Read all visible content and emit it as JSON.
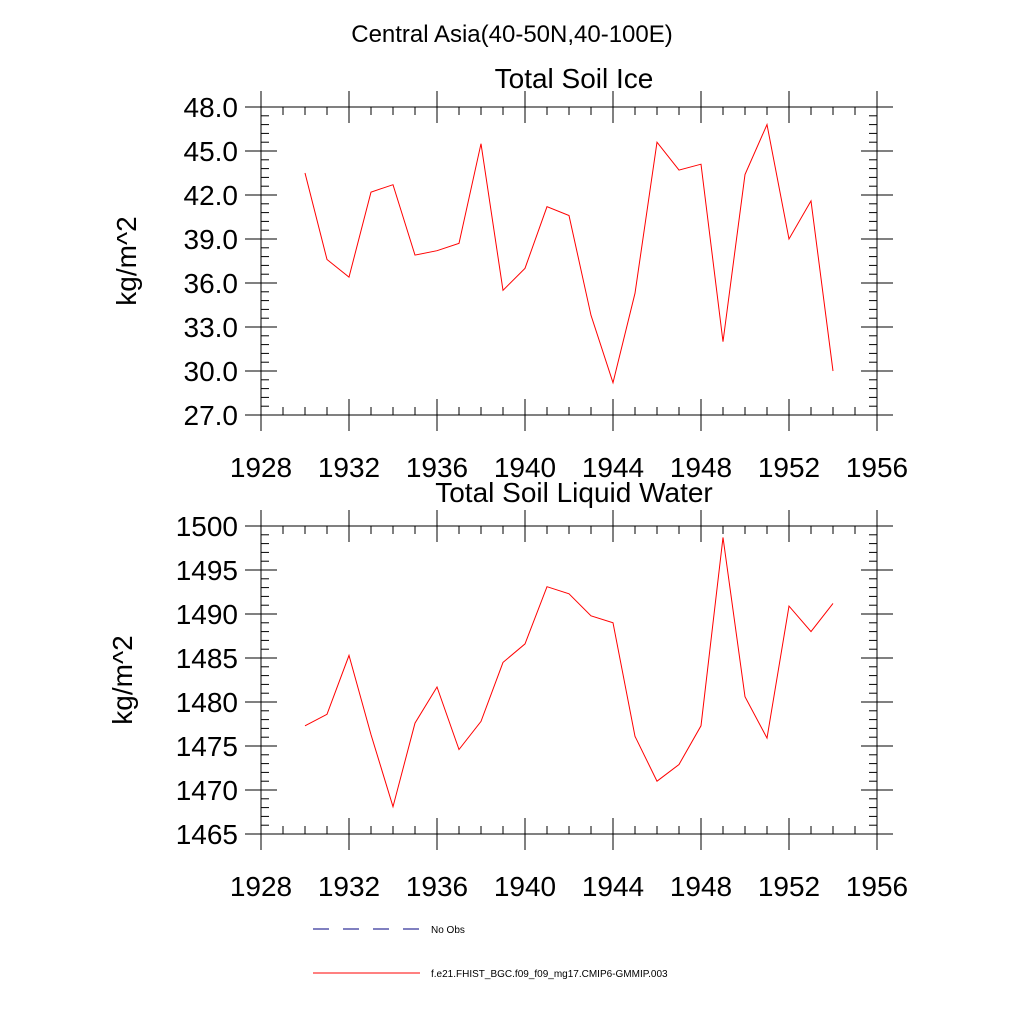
{
  "figure_title": "Central Asia(40-50N,40-100E)",
  "legend": [
    {
      "label": "No Obs",
      "color": "#000080",
      "style": "dashed"
    },
    {
      "label": "f.e21.FHIST_BGC.f09_f09_mg17.CMIP6-GMMIP.003",
      "color": "#ff0000",
      "style": "solid"
    }
  ],
  "chart_data": [
    {
      "type": "line",
      "title": "Total Soil Ice",
      "xlabel": "",
      "ylabel": "kg/m^2",
      "xlim": [
        1928,
        1956
      ],
      "ylim": [
        27,
        48
      ],
      "xticks": [
        1928,
        1932,
        1936,
        1940,
        1944,
        1948,
        1952,
        1956
      ],
      "yticks": [
        27,
        30,
        33,
        36,
        39,
        42,
        45,
        48
      ],
      "ytick_labels": [
        "27.0",
        "30.0",
        "33.0",
        "36.0",
        "39.0",
        "42.0",
        "45.0",
        "48.0"
      ],
      "series": [
        {
          "name": "f.e21.FHIST_BGC.f09_f09_mg17.CMIP6-GMMIP.003",
          "color": "#ff0000",
          "x": [
            1930,
            1931,
            1932,
            1933,
            1934,
            1935,
            1936,
            1937,
            1938,
            1939,
            1940,
            1941,
            1942,
            1943,
            1944,
            1945,
            1946,
            1947,
            1948,
            1949,
            1950,
            1951,
            1952,
            1953,
            1954
          ],
          "y": [
            43.5,
            37.6,
            36.4,
            42.2,
            42.7,
            37.9,
            38.2,
            38.7,
            45.5,
            35.5,
            37.0,
            41.2,
            40.6,
            33.8,
            29.2,
            35.3,
            45.6,
            43.7,
            44.1,
            32.0,
            43.4,
            46.8,
            39.0,
            41.6,
            30.0
          ]
        }
      ]
    },
    {
      "type": "line",
      "title": "Total Soil Liquid Water",
      "xlabel": "",
      "ylabel": "kg/m^2",
      "xlim": [
        1928,
        1956
      ],
      "ylim": [
        1465,
        1500
      ],
      "xticks": [
        1928,
        1932,
        1936,
        1940,
        1944,
        1948,
        1952,
        1956
      ],
      "yticks": [
        1465,
        1470,
        1475,
        1480,
        1485,
        1490,
        1495,
        1500
      ],
      "ytick_labels": [
        "1465",
        "1470",
        "1475",
        "1480",
        "1485",
        "1490",
        "1495",
        "1500"
      ],
      "series": [
        {
          "name": "f.e21.FHIST_BGC.f09_f09_mg17.CMIP6-GMMIP.003",
          "color": "#ff0000",
          "x": [
            1930,
            1931,
            1932,
            1933,
            1934,
            1935,
            1936,
            1937,
            1938,
            1939,
            1940,
            1941,
            1942,
            1943,
            1944,
            1945,
            1946,
            1947,
            1948,
            1949,
            1950,
            1951,
            1952,
            1953,
            1954
          ],
          "y": [
            1477.3,
            1478.6,
            1485.3,
            1476.3,
            1468.1,
            1477.6,
            1481.7,
            1474.6,
            1477.8,
            1484.5,
            1486.6,
            1493.1,
            1492.3,
            1489.8,
            1489.0,
            1476.1,
            1471.0,
            1472.9,
            1477.3,
            1498.7,
            1480.6,
            1475.9,
            1490.9,
            1488.0,
            1491.2
          ]
        }
      ]
    }
  ]
}
